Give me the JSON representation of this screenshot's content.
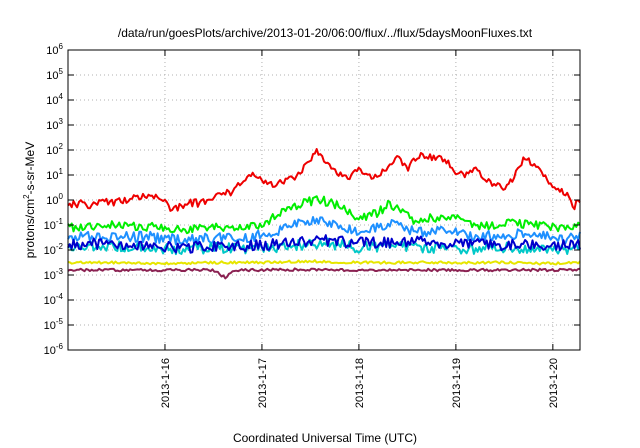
{
  "chart_data": {
    "type": "line",
    "title": "/data/run/goesPlots/archive/2013-01-20/06:00/flux/../flux/5daysMoonFluxes.txt",
    "xlabel": "Coordinated Universal Time (UTC)",
    "ylabel": {
      "prefix": "protons/cm",
      "sup": "2",
      "suffix": "-s-sr-MeV"
    },
    "yscale": "log",
    "ylim_exponents": [
      -6,
      6
    ],
    "y_ticks": [
      {
        "base": "10",
        "exp": "6"
      },
      {
        "base": "10",
        "exp": "5"
      },
      {
        "base": "10",
        "exp": "4"
      },
      {
        "base": "10",
        "exp": "3"
      },
      {
        "base": "10",
        "exp": "2"
      },
      {
        "base": "10",
        "exp": "1"
      },
      {
        "base": "10",
        "exp": "0"
      },
      {
        "base": "10",
        "exp": "-1"
      },
      {
        "base": "10",
        "exp": "-2"
      },
      {
        "base": "10",
        "exp": "-3"
      },
      {
        "base": "10",
        "exp": "-4"
      },
      {
        "base": "10",
        "exp": "-5"
      },
      {
        "base": "10",
        "exp": "-6"
      }
    ],
    "xlim_days": [
      15.0,
      20.28
    ],
    "x_ticks": [
      {
        "day": 16,
        "label": "2013-1-16"
      },
      {
        "day": 17,
        "label": "2013-1-17"
      },
      {
        "day": 18,
        "label": "2013-1-18"
      },
      {
        "day": 19,
        "label": "2013-1-19"
      },
      {
        "day": 20,
        "label": "2013-1-20"
      }
    ],
    "grid": true,
    "series": [
      {
        "color": "#ee0000",
        "points": [
          [
            15.0,
            -0.2
          ],
          [
            15.3,
            -0.15
          ],
          [
            15.6,
            0.0
          ],
          [
            15.8,
            0.2
          ],
          [
            15.95,
            0.15
          ],
          [
            16.05,
            -0.3
          ],
          [
            16.2,
            -0.2
          ],
          [
            16.4,
            -0.05
          ],
          [
            16.6,
            0.3
          ],
          [
            16.7,
            0.3
          ],
          [
            16.8,
            0.8
          ],
          [
            16.9,
            1.1
          ],
          [
            17.0,
            0.8
          ],
          [
            17.1,
            0.6
          ],
          [
            17.2,
            0.7
          ],
          [
            17.35,
            0.9
          ],
          [
            17.5,
            1.6
          ],
          [
            17.55,
            2.0
          ],
          [
            17.6,
            1.8
          ],
          [
            17.7,
            1.4
          ],
          [
            17.8,
            1.0
          ],
          [
            17.9,
            0.9
          ],
          [
            18.0,
            1.2
          ],
          [
            18.1,
            0.9
          ],
          [
            18.2,
            1.0
          ],
          [
            18.3,
            1.3
          ],
          [
            18.4,
            1.7
          ],
          [
            18.5,
            1.2
          ],
          [
            18.55,
            1.5
          ],
          [
            18.65,
            1.8
          ],
          [
            18.75,
            1.7
          ],
          [
            18.9,
            1.6
          ],
          [
            19.0,
            1.1
          ],
          [
            19.1,
            1.0
          ],
          [
            19.2,
            1.2
          ],
          [
            19.35,
            0.7
          ],
          [
            19.5,
            0.5
          ],
          [
            19.6,
            0.9
          ],
          [
            19.7,
            1.7
          ],
          [
            19.75,
            1.6
          ],
          [
            19.85,
            1.2
          ],
          [
            19.95,
            0.8
          ],
          [
            20.05,
            0.4
          ],
          [
            20.15,
            0.25
          ],
          [
            20.22,
            -0.2
          ],
          [
            20.28,
            0.0
          ]
        ]
      },
      {
        "color": "#00ee00",
        "points": [
          [
            15.0,
            -1.1
          ],
          [
            15.3,
            -1.0
          ],
          [
            15.6,
            -1.0
          ],
          [
            15.9,
            -1.1
          ],
          [
            16.2,
            -1.2
          ],
          [
            16.5,
            -1.1
          ],
          [
            16.8,
            -1.1
          ],
          [
            17.0,
            -1.0
          ],
          [
            17.15,
            -0.6
          ],
          [
            17.3,
            -0.3
          ],
          [
            17.5,
            -0.05
          ],
          [
            17.6,
            0.0
          ],
          [
            17.8,
            -0.2
          ],
          [
            17.9,
            -0.5
          ],
          [
            18.0,
            -0.7
          ],
          [
            18.2,
            -0.5
          ],
          [
            18.3,
            -0.2
          ],
          [
            18.45,
            -0.4
          ],
          [
            18.55,
            -0.8
          ],
          [
            18.7,
            -0.7
          ],
          [
            18.85,
            -0.8
          ],
          [
            19.0,
            -0.7
          ],
          [
            19.2,
            -1.0
          ],
          [
            19.4,
            -1.0
          ],
          [
            19.6,
            -0.9
          ],
          [
            19.8,
            -1.0
          ],
          [
            20.0,
            -1.1
          ],
          [
            20.2,
            -1.2
          ],
          [
            20.28,
            -1.0
          ]
        ]
      },
      {
        "color": "#1e90ff",
        "points": [
          [
            15.0,
            -1.5
          ],
          [
            15.3,
            -1.4
          ],
          [
            15.6,
            -1.45
          ],
          [
            15.9,
            -1.5
          ],
          [
            16.2,
            -1.6
          ],
          [
            16.5,
            -1.5
          ],
          [
            16.8,
            -1.5
          ],
          [
            17.0,
            -1.4
          ],
          [
            17.2,
            -1.2
          ],
          [
            17.4,
            -0.9
          ],
          [
            17.6,
            -0.8
          ],
          [
            17.8,
            -1.0
          ],
          [
            18.0,
            -1.3
          ],
          [
            18.2,
            -1.1
          ],
          [
            18.4,
            -0.8
          ],
          [
            18.5,
            -1.2
          ],
          [
            18.7,
            -1.3
          ],
          [
            18.9,
            -1.2
          ],
          [
            19.1,
            -1.4
          ],
          [
            19.3,
            -1.4
          ],
          [
            19.5,
            -1.4
          ],
          [
            19.7,
            -1.3
          ],
          [
            19.9,
            -1.4
          ],
          [
            20.1,
            -1.6
          ],
          [
            20.28,
            -1.5
          ]
        ]
      },
      {
        "color": "#00c8c8",
        "points": [
          [
            15.0,
            -1.9
          ],
          [
            15.3,
            -1.9
          ],
          [
            15.6,
            -1.85
          ],
          [
            15.9,
            -1.9
          ],
          [
            16.2,
            -2.0
          ],
          [
            16.5,
            -1.9
          ],
          [
            16.8,
            -1.95
          ],
          [
            17.1,
            -1.9
          ],
          [
            17.4,
            -1.8
          ],
          [
            17.7,
            -1.75
          ],
          [
            18.0,
            -1.9
          ],
          [
            18.3,
            -1.85
          ],
          [
            18.6,
            -1.9
          ],
          [
            18.9,
            -1.9
          ],
          [
            19.2,
            -1.95
          ],
          [
            19.5,
            -1.9
          ],
          [
            19.8,
            -1.95
          ],
          [
            20.1,
            -2.0
          ],
          [
            20.28,
            -1.9
          ]
        ]
      },
      {
        "color": "#0000cc",
        "points": [
          [
            15.0,
            -1.8
          ],
          [
            15.3,
            -1.75
          ],
          [
            15.6,
            -1.8
          ],
          [
            15.9,
            -1.85
          ],
          [
            16.2,
            -1.9
          ],
          [
            16.5,
            -1.85
          ],
          [
            16.8,
            -1.85
          ],
          [
            17.0,
            -1.8
          ],
          [
            17.3,
            -1.7
          ],
          [
            17.6,
            -1.6
          ],
          [
            17.9,
            -1.7
          ],
          [
            18.2,
            -1.7
          ],
          [
            18.5,
            -1.65
          ],
          [
            18.8,
            -1.7
          ],
          [
            19.1,
            -1.75
          ],
          [
            19.4,
            -1.8
          ],
          [
            19.7,
            -1.75
          ],
          [
            20.0,
            -1.8
          ],
          [
            20.28,
            -1.8
          ]
        ]
      },
      {
        "color": "#e6e600",
        "points": [
          [
            15.0,
            -2.5
          ],
          [
            15.5,
            -2.5
          ],
          [
            16.0,
            -2.55
          ],
          [
            16.5,
            -2.5
          ],
          [
            17.0,
            -2.5
          ],
          [
            17.5,
            -2.45
          ],
          [
            18.0,
            -2.5
          ],
          [
            18.5,
            -2.5
          ],
          [
            19.0,
            -2.5
          ],
          [
            19.5,
            -2.5
          ],
          [
            20.0,
            -2.55
          ],
          [
            20.28,
            -2.5
          ]
        ]
      },
      {
        "color": "#8b2252",
        "points": [
          [
            15.0,
            -2.8
          ],
          [
            15.5,
            -2.8
          ],
          [
            16.0,
            -2.8
          ],
          [
            16.5,
            -2.8
          ],
          [
            16.62,
            -3.1
          ],
          [
            16.7,
            -2.8
          ],
          [
            17.0,
            -2.8
          ],
          [
            17.5,
            -2.78
          ],
          [
            18.0,
            -2.8
          ],
          [
            18.5,
            -2.8
          ],
          [
            19.0,
            -2.8
          ],
          [
            19.5,
            -2.8
          ],
          [
            20.0,
            -2.8
          ],
          [
            20.28,
            -2.8
          ]
        ]
      }
    ]
  }
}
